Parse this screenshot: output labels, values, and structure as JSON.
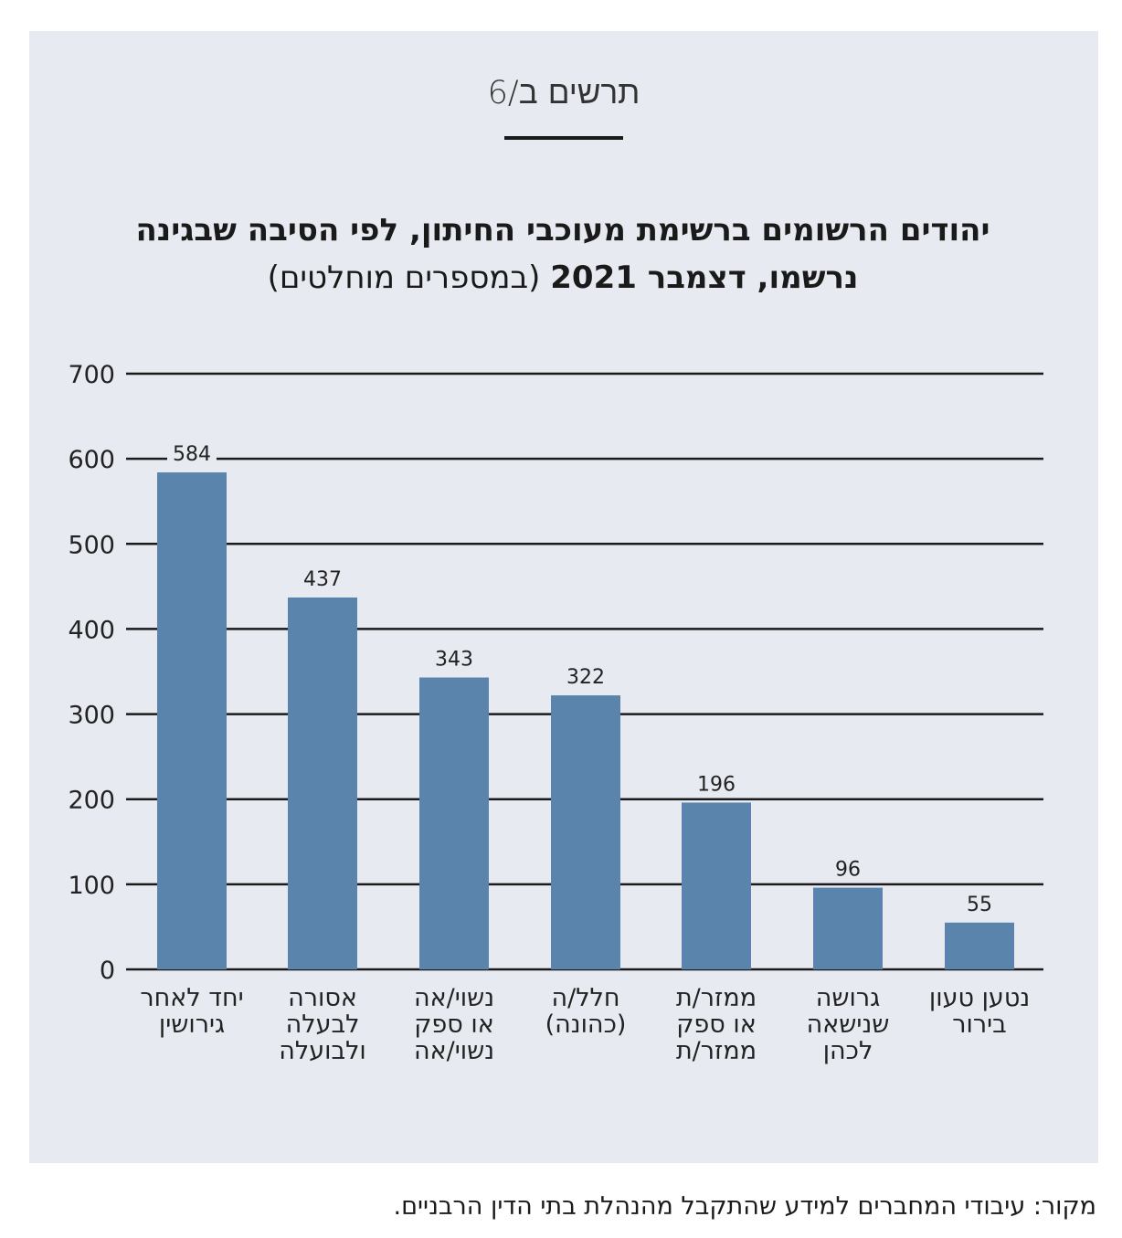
{
  "figure_label": "תרשים ב/6",
  "title_line1": "יהודים הרשומים ברשימת מעוכבי החיתון, לפי הסיבה שבגינה",
  "title_line2_bold": "נרשמו, דצמבר 2021",
  "title_line2_light": "(במספרים מוחלטים)",
  "source": "מקור: עיבודי המחברים למידע שהתקבל מהנהלת בתי הדין הרבניים.",
  "chart_data": {
    "type": "bar",
    "categories": [
      [
        "יחד לאחר",
        "גירושין"
      ],
      [
        "אסורה",
        "לבעלה",
        "ולבועלה"
      ],
      [
        "נשוי/אה",
        "או ספק",
        "נשוי/אה"
      ],
      [
        "חלל/ה",
        "(כהונה)"
      ],
      [
        "ממזר/ת",
        "או ספק",
        "ממזר/ת"
      ],
      [
        "גרושה",
        "שנישאה",
        "לכהן"
      ],
      [
        "נטען טעון",
        "בירור"
      ]
    ],
    "values": [
      584,
      437,
      343,
      322,
      196,
      96,
      55
    ],
    "data_labels": [
      "584",
      "437",
      "343",
      "322",
      "196",
      "96",
      "55"
    ],
    "ylim": [
      0,
      700
    ],
    "yticks": [
      0,
      100,
      200,
      300,
      400,
      500,
      600,
      700
    ],
    "grid": true,
    "bar_color": "#5b84ad",
    "grid_color": "#1a1a1a"
  }
}
